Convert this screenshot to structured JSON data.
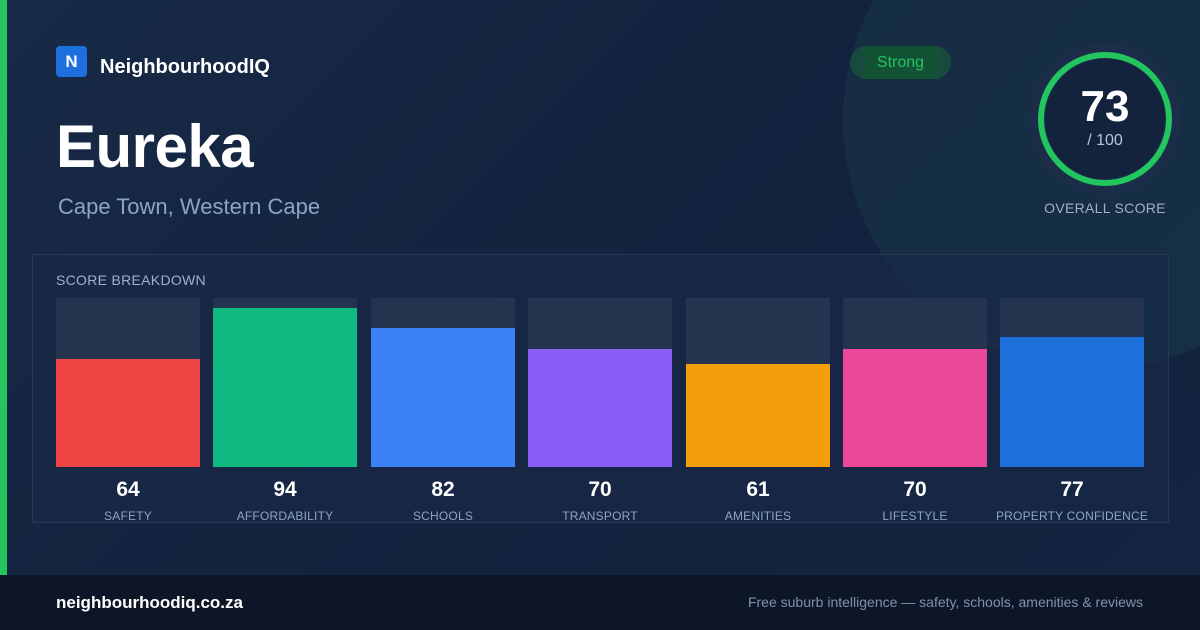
{
  "brand": {
    "logo_letter": "N",
    "name": "NeighbourhoodIQ"
  },
  "suburb": {
    "name": "Eureka",
    "location": "Cape Town, Western Cape"
  },
  "rating": {
    "badge": "Strong",
    "score": "73",
    "max": "/ 100",
    "label": "OVERALL SCORE",
    "fraction": 0.73,
    "color": "#22c55e"
  },
  "breakdown": {
    "title": "SCORE BREAKDOWN",
    "items": [
      {
        "label": "SAFETY",
        "value": "64",
        "color": "#ef4444"
      },
      {
        "label": "AFFORDABILITY",
        "value": "94",
        "color": "#10b981"
      },
      {
        "label": "SCHOOLS",
        "value": "82",
        "color": "#3b82f6"
      },
      {
        "label": "TRANSPORT",
        "value": "70",
        "color": "#8b5cf6"
      },
      {
        "label": "AMENITIES",
        "value": "61",
        "color": "#f59e0b"
      },
      {
        "label": "LIFESTYLE",
        "value": "70",
        "color": "#ec4899"
      },
      {
        "label": "PROPERTY CONFIDENCE",
        "value": "77",
        "color": "#1d6fd9"
      }
    ]
  },
  "footer": {
    "url": "neighbourhoodiq.co.za",
    "tagline": "Free suburb intelligence — safety, schools, amenities & reviews"
  },
  "colors": {
    "accent": "#22c55e",
    "background": "#14213a",
    "footer_bg": "#0c1626"
  }
}
